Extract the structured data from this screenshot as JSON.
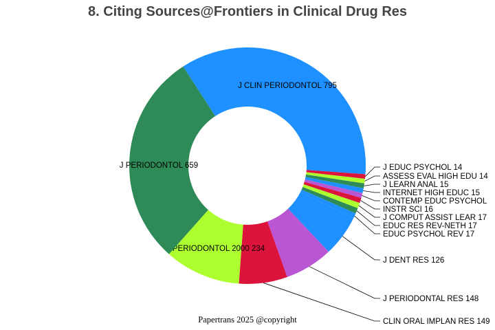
{
  "chart_data": {
    "type": "pie",
    "donut": true,
    "title": "8. Citing Sources@Frontiers in Clinical Drug Res",
    "slices": [
      {
        "label": "J CLIN PERIODONTOL 795",
        "value": 795,
        "color": "#1E90FF",
        "placement": "inside"
      },
      {
        "label": "J EDUC PSYCHOL 14",
        "value": 14,
        "color": "#DC143C",
        "placement": "outside"
      },
      {
        "label": "ASSESS EVAL HIGH EDU 14",
        "value": 14,
        "color": "#ADFF2F",
        "placement": "outside"
      },
      {
        "label": "J LEARN ANAL 15",
        "value": 15,
        "color": "#2E8B57",
        "placement": "outside"
      },
      {
        "label": "INTERNET HIGH EDUC 15",
        "value": 15,
        "color": "#1E90FF",
        "placement": "outside"
      },
      {
        "label": "CONTEMP EDUC PSYCHOL",
        "value": 15,
        "color": "#BA55D3",
        "placement": "outside"
      },
      {
        "label": "INSTR SCI 16",
        "value": 16,
        "color": "#DC143C",
        "placement": "outside"
      },
      {
        "label": "J COMPUT ASSIST LEAR 17",
        "value": 17,
        "color": "#ADFF2F",
        "placement": "outside"
      },
      {
        "label": "EDUC RES REV-NETH 17",
        "value": 17,
        "color": "#2E8B57",
        "placement": "outside"
      },
      {
        "label": "EDUC PSYCHOL REV 17",
        "value": 17,
        "color": "#1E90FF",
        "placement": "outside"
      },
      {
        "label": "J DENT RES 126",
        "value": 126,
        "color": "#1E90FF",
        "placement": "outside"
      },
      {
        "label": "J PERIODONTAL RES 148",
        "value": 148,
        "color": "#BA55D3",
        "placement": "outside"
      },
      {
        "label": "CLIN ORAL IMPLAN RES 149",
        "value": 149,
        "color": "#DC143C",
        "placement": "outside"
      },
      {
        "label": "PERIODONTOL 2000 234",
        "value": 234,
        "color": "#ADFF2F",
        "placement": "inside"
      },
      {
        "label": "J PERIODONTOL 659",
        "value": 659,
        "color": "#2E8B57",
        "placement": "inside"
      }
    ]
  },
  "footer": "Papertrans 2025 @copyright"
}
